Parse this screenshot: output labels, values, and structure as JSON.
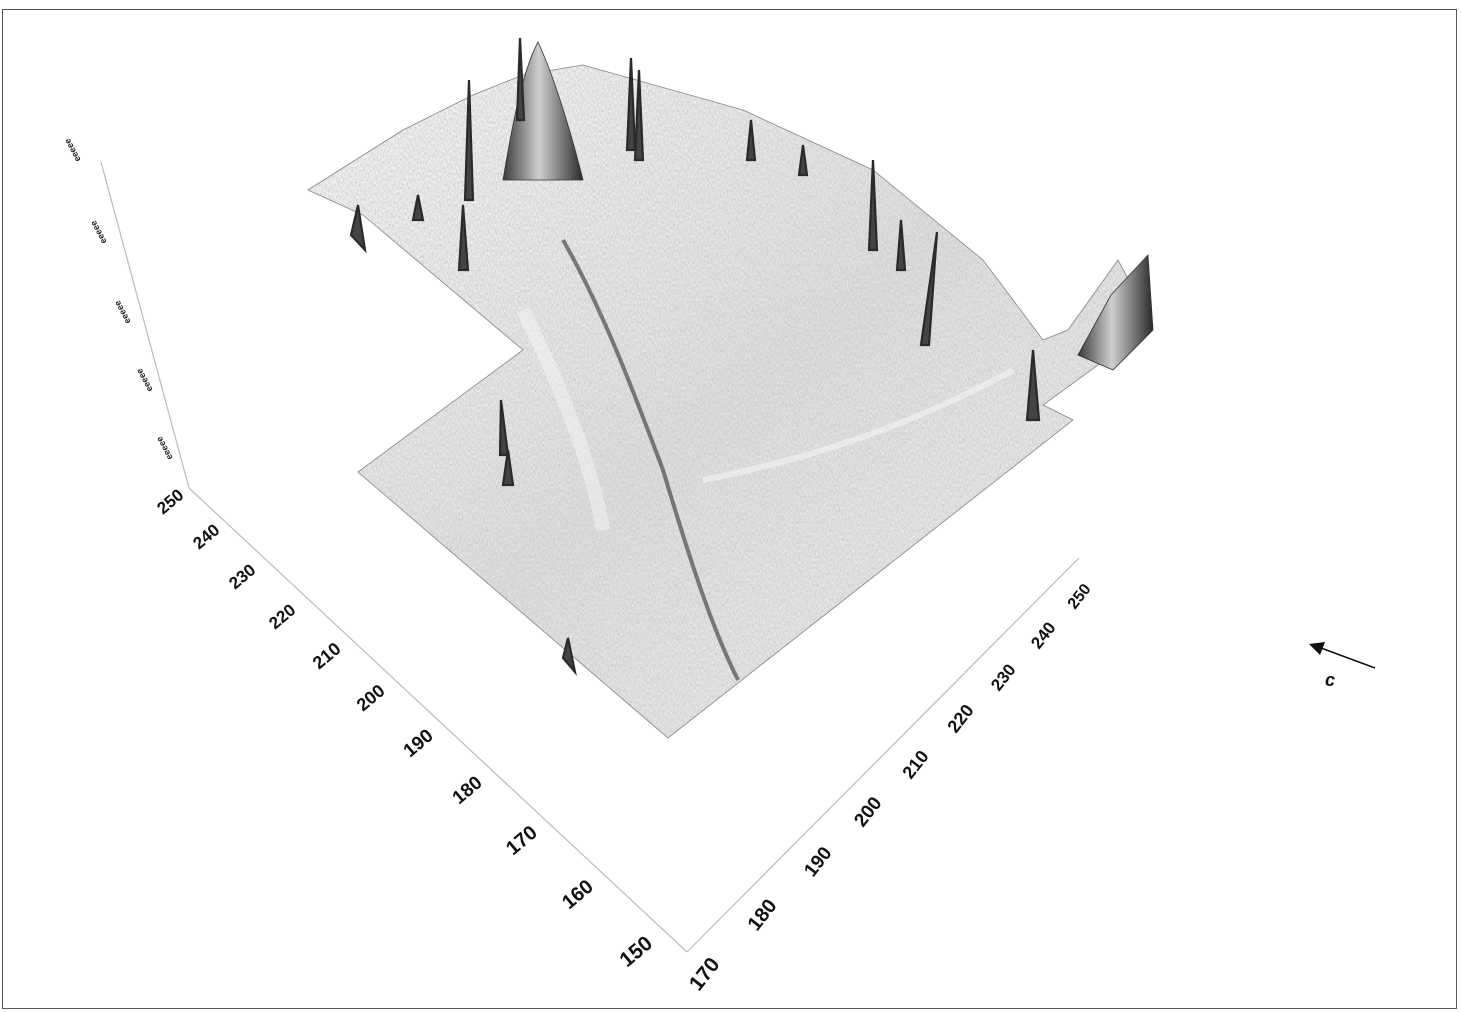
{
  "plot": {
    "x_axis_ticks": [
      "150",
      "160",
      "170",
      "180",
      "190",
      "200",
      "210",
      "220",
      "230",
      "240",
      "250"
    ],
    "y_axis_ticks": [
      "170",
      "180",
      "190",
      "200",
      "210",
      "220",
      "230",
      "240",
      "250"
    ],
    "z_axis_ticks": [
      "ǝǝǝǝǝ",
      "ǝǝǝǝǝ",
      "ǝǝǝǝǝ",
      "ǝǝǝǝǝ",
      "ǝǝǝǝǝ"
    ],
    "direction_label": "c",
    "surface_color": "#9a9a9a",
    "axis_color": "#bbbbbb"
  }
}
